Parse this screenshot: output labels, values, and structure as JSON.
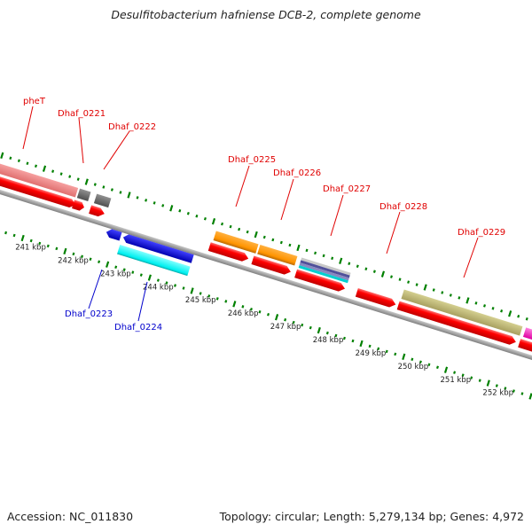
{
  "title": "Desulfitobacterium hafniense DCB-2, complete genome",
  "footer": {
    "accession": "Accession: NC_011830",
    "summary": "Topology: circular; Length: 5,279,134 bp; Genes: 4,972"
  },
  "colors": {
    "forward_cds": "#ff0000",
    "backbone": "#999999",
    "tick": "#008000",
    "forward_label": "#e00000",
    "reverse_label": "#0000cc"
  },
  "scale_labels": [
    "241 kbp",
    "242 kbp",
    "243 kbp",
    "244 kbp",
    "245 kbp",
    "246 kbp",
    "247 kbp",
    "248 kbp",
    "249 kbp",
    "250 kbp",
    "251 kbp",
    "252 kbp"
  ],
  "forward_labels": [
    "pheT",
    "Dhaf_0221",
    "Dhaf_0222",
    "Dhaf_0225",
    "Dhaf_0226",
    "Dhaf_0227",
    "Dhaf_0228",
    "Dhaf_0229"
  ],
  "reverse_labels": [
    "Dhaf_0223",
    "Dhaf_0224"
  ],
  "feature_colors": {
    "pheT": "#f08080",
    "Dhaf_0221": "#707070",
    "Dhaf_0222": "#707070",
    "Dhaf_0223": "#0000ee",
    "Dhaf_0224": "#00eeee",
    "Dhaf_0225": "#ff9900",
    "Dhaf_0226": "#ff9900",
    "Dhaf_0227": "#6060a0",
    "Dhaf_0229": "#bdb76b",
    "next": "#ff33cc"
  }
}
